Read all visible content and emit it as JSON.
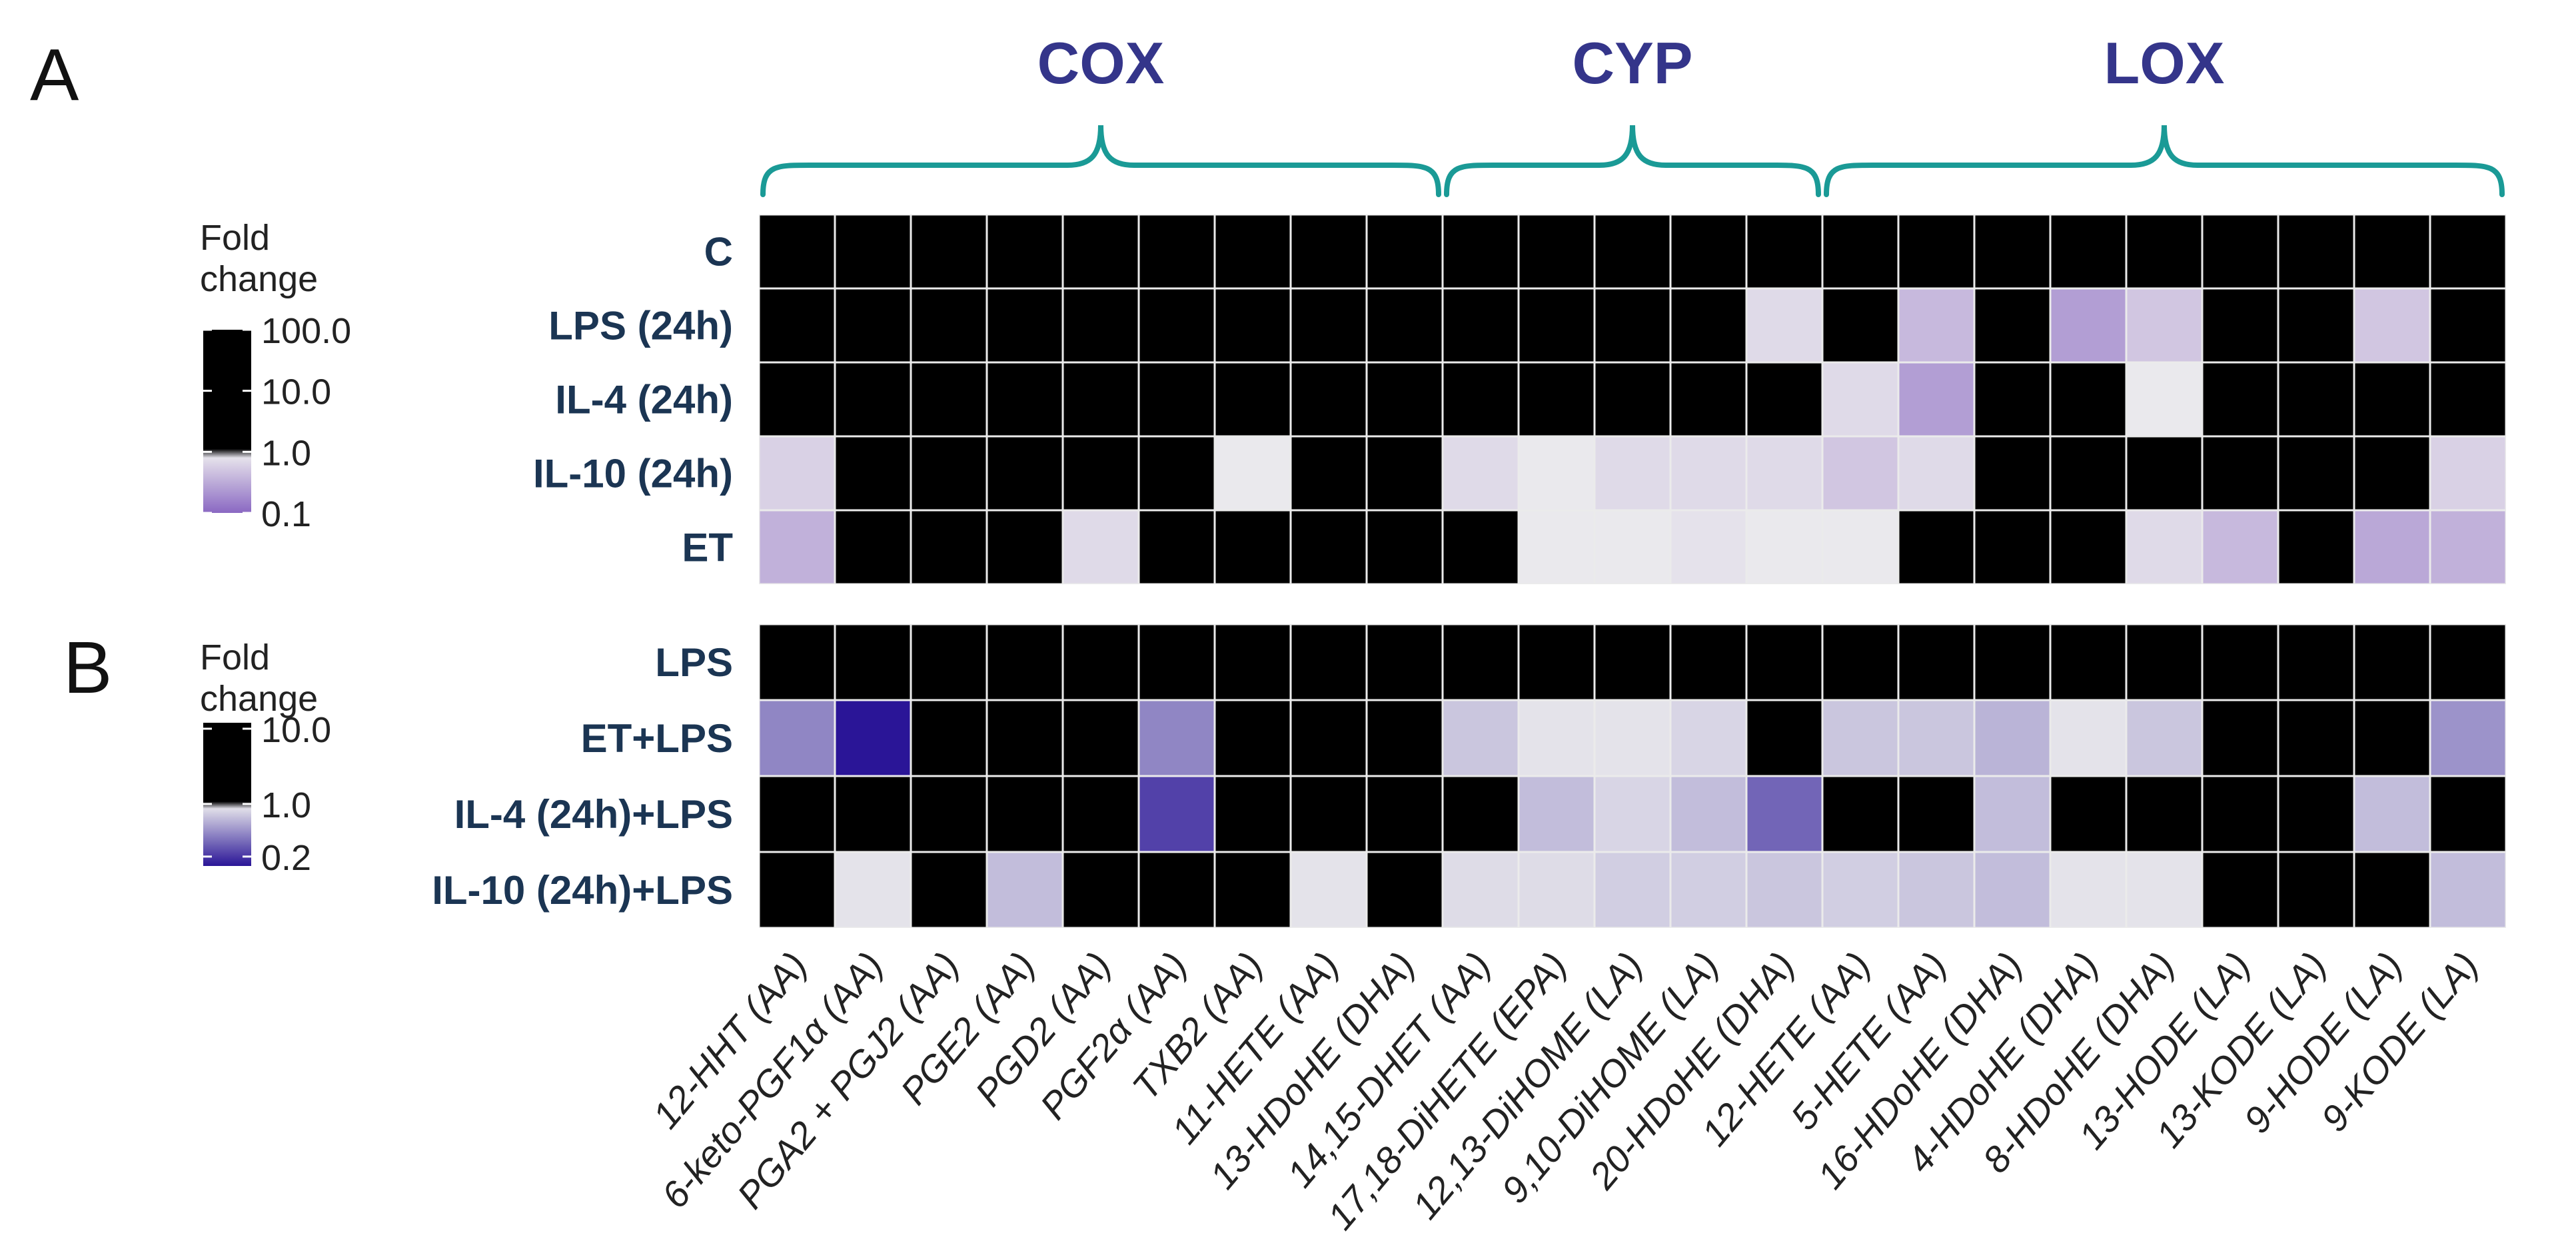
{
  "chart_data": {
    "type": "heatmap",
    "groups": [
      {
        "label": "COX",
        "columns": [
          0,
          8
        ]
      },
      {
        "label": "CYP",
        "columns": [
          9,
          13
        ]
      },
      {
        "label": "LOX",
        "columns": [
          14,
          22
        ]
      }
    ],
    "columns": [
      "12-HHT (AA)",
      "6-keto-PGF1α (AA)",
      "PGA2 + PGJ2 (AA)",
      "PGE2 (AA)",
      "PGD2 (AA)",
      "PGF2α (AA)",
      "TXB2 (AA)",
      "11-HETE (AA)",
      "13-HDoHE (DHA)",
      "14,15-DHET (AA)",
      "17,18-DiHETE (EPA)",
      "12,13-DiHOME (LA)",
      "9,10-DiHOME (LA)",
      "20-HDoHE (DHA)",
      "12-HETE (AA)",
      "5-HETE (AA)",
      "16-HDoHE (DHA)",
      "4-HDoHE (DHA)",
      "8-HDoHE (DHA)",
      "13-HODE (LA)",
      "13-KODE (LA)",
      "9-HODE (LA)",
      "9-KODE (LA)"
    ],
    "panels": [
      {
        "letter": "A",
        "legend": {
          "title_line1": "Fold",
          "title_line2": "change",
          "ticks": [
            "100.0",
            "10.0",
            "1.0",
            "0.1"
          ],
          "tick_values": [
            100,
            10,
            1,
            0.1
          ],
          "range": [
            0.1,
            100
          ]
        },
        "colors": {
          "low": "#8a68c2",
          "mid": "#efefef",
          "high": "#ff0000"
        },
        "rows": [
          {
            "label": "C",
            "values": [
              1,
              1,
              1,
              1,
              1,
              1,
              1,
              1,
              1,
              1,
              1,
              1,
              1,
              1,
              1,
              1,
              1,
              1,
              1,
              1,
              1,
              1,
              1
            ]
          },
          {
            "label": "LPS (24h)",
            "values": [
              1,
              80,
              10,
              120,
              15,
              12,
              6,
              30,
              20,
              1.5,
              1,
              1,
              1,
              0.7,
              1.1,
              0.4,
              1,
              0.25,
              0.5,
              3,
              1,
              0.5,
              1
            ]
          },
          {
            "label": "IL-4 (24h)",
            "values": [
              6,
              1.5,
              1.5,
              1.8,
              4,
              2,
              2.5,
              2.5,
              2,
              10,
              2.5,
              1,
              1,
              1,
              0.7,
              0.25,
              1,
              3.5,
              0.9,
              1.5,
              1,
              4,
              1
            ]
          },
          {
            "label": "IL-10 (24h)",
            "values": [
              0.6,
              1,
              1,
              1,
              1.2,
              3,
              0.9,
              1,
              2.5,
              0.7,
              0.9,
              0.7,
              0.7,
              0.7,
              0.5,
              0.7,
              1,
              1.5,
              8,
              1,
              1,
              2,
              0.6
            ]
          },
          {
            "label": "ET",
            "values": [
              0.35,
              1.8,
              3.5,
              35,
              0.7,
              4,
              2.5,
              1.7,
              15,
              1.3,
              0.9,
              0.9,
              0.8,
              0.9,
              0.9,
              1.2,
              2.5,
              3,
              0.7,
              0.4,
              3,
              0.3,
              0.35
            ]
          }
        ]
      },
      {
        "letter": "B",
        "legend": {
          "title_line1": "Fold",
          "title_line2": "change",
          "ticks": [
            "10.0",
            "1.0",
            "0.2"
          ],
          "tick_values": [
            10,
            1,
            0.2
          ],
          "range": [
            0.15,
            12
          ]
        },
        "colors": {
          "low": "#2a1597",
          "mid": "#efefef",
          "high": "#ff0000"
        },
        "rows": [
          {
            "label": "LPS",
            "values": [
              1,
              1,
              1,
              1,
              1,
              1,
              1,
              1,
              1,
              1,
              1,
              1,
              1,
              1,
              1,
              1,
              1,
              1,
              1,
              1,
              1,
              1,
              1
            ]
          },
          {
            "label": "ET+LPS",
            "values": [
              0.4,
              0.15,
              2.5,
              6,
              2.5,
              0.4,
              3,
              3.5,
              3,
              0.7,
              0.9,
              0.9,
              0.8,
              1.2,
              0.7,
              0.7,
              0.6,
              0.9,
              0.7,
              1.5,
              1.5,
              1.5,
              0.45
            ]
          },
          {
            "label": "IL-4 (24h)+LPS",
            "values": [
              12,
              5,
              3,
              1.3,
              6,
              0.22,
              3.5,
              4,
              3,
              3,
              0.65,
              0.8,
              0.65,
              0.3,
              1,
              1.1,
              0.65,
              1.3,
              1,
              2.5,
              1,
              0.65,
              1
            ]
          },
          {
            "label": "IL-10 (24h)+LPS",
            "values": [
              1.5,
              0.9,
              1,
              0.65,
              1.3,
              1,
              1,
              0.9,
              1.6,
              0.85,
              0.85,
              0.75,
              0.75,
              0.7,
              0.75,
              0.7,
              0.65,
              0.9,
              0.9,
              1.3,
              1,
              1,
              0.65
            ]
          }
        ]
      }
    ],
    "bracket_color": "#1a9a96"
  }
}
